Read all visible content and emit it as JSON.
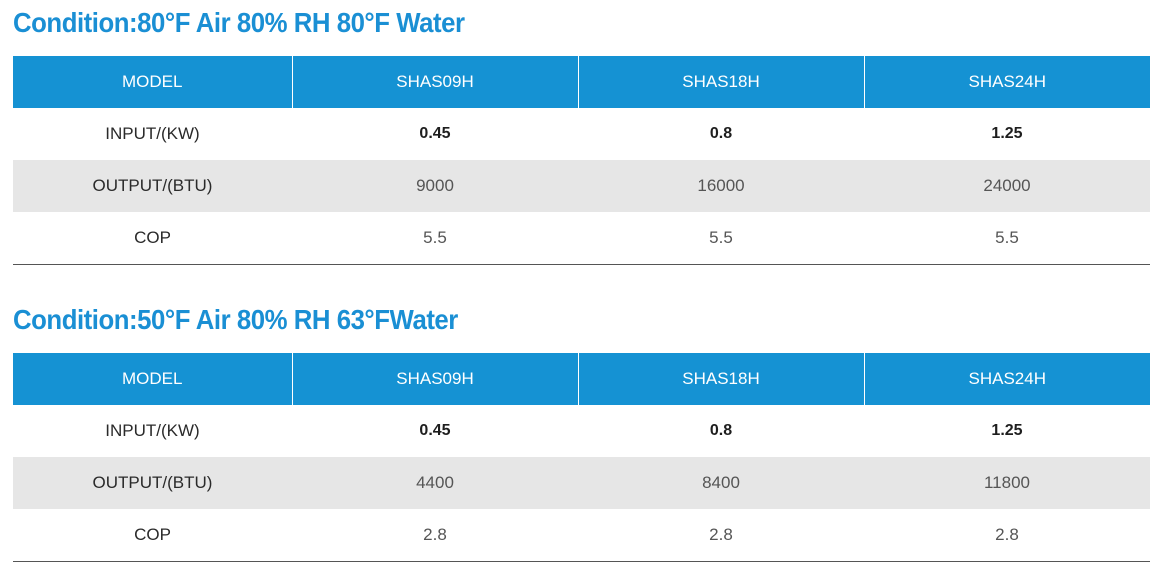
{
  "tables": [
    {
      "title": "Condition:80°F Air 80% RH 80°F Water",
      "headers": [
        "MODEL",
        "SHAS09H",
        "SHAS18H",
        "SHAS24H"
      ],
      "rows": [
        {
          "label": "INPUT/(KW)",
          "values": [
            "0.45",
            "0.8",
            "1.25"
          ]
        },
        {
          "label": "OUTPUT/(BTU)",
          "values": [
            "9000",
            "16000",
            "24000"
          ]
        },
        {
          "label": "COP",
          "values": [
            "5.5",
            "5.5",
            "5.5"
          ]
        }
      ]
    },
    {
      "title": "Condition:50°F Air 80% RH 63°FWater",
      "headers": [
        "MODEL",
        "SHAS09H",
        "SHAS18H",
        "SHAS24H"
      ],
      "rows": [
        {
          "label": "INPUT/(KW)",
          "values": [
            "0.45",
            "0.8",
            "1.25"
          ]
        },
        {
          "label": "OUTPUT/(BTU)",
          "values": [
            "4400",
            "8400",
            "11800"
          ]
        },
        {
          "label": "COP",
          "values": [
            "2.8",
            "2.8",
            "2.8"
          ]
        }
      ]
    }
  ],
  "colors": {
    "title": "#1a8fd4",
    "header_background": "#1592d3",
    "header_text": "#ffffff",
    "stripe": "#e6e6e6"
  }
}
